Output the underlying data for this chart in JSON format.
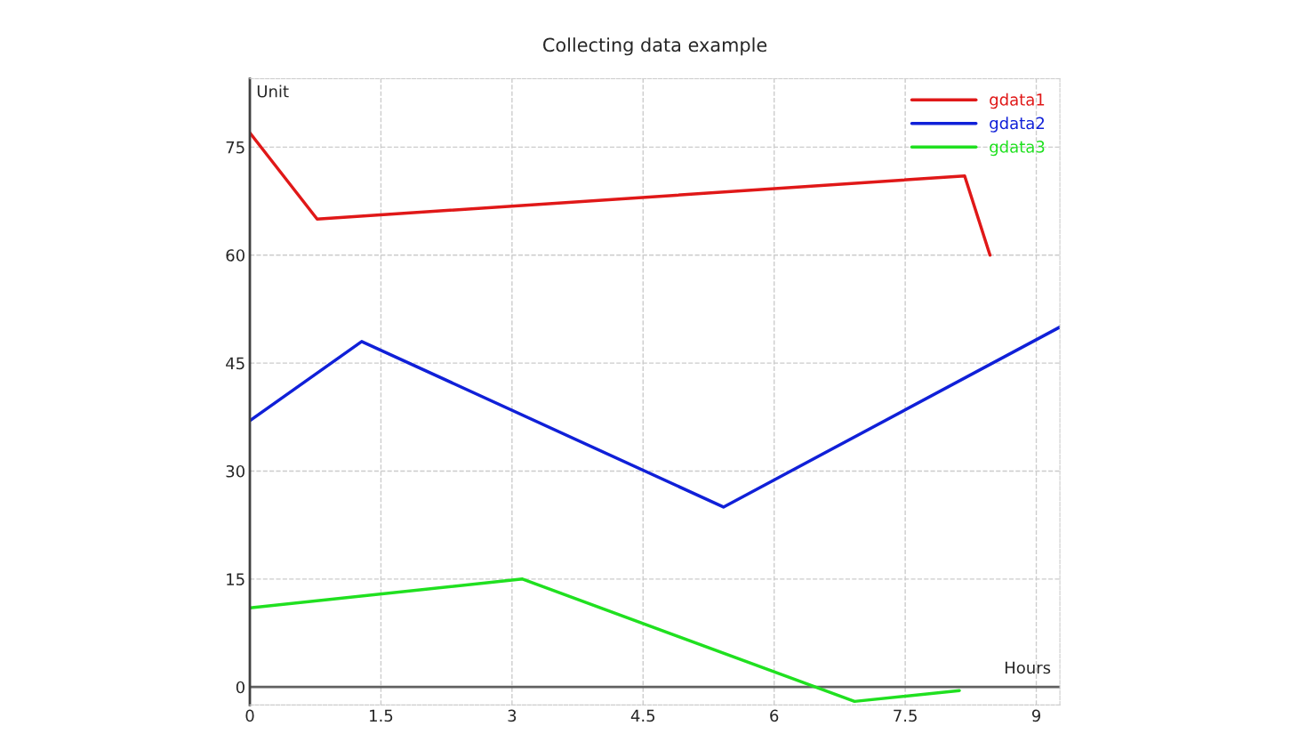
{
  "chart_data": {
    "type": "line",
    "title": "Collecting data example",
    "xlabel": "Hours",
    "ylabel": "Unit",
    "xlim": [
      0,
      9.27
    ],
    "ylim": [
      -2.5,
      84.5
    ],
    "xticks": [
      0,
      1.5,
      3,
      4.5,
      6,
      7.5,
      9
    ],
    "yticks": [
      0,
      15,
      30,
      45,
      60,
      75
    ],
    "grid": true,
    "legend": "top right",
    "line_style": "solid",
    "ref_lines": [
      {
        "axis": "y",
        "value": 0,
        "color": "#606060"
      }
    ],
    "series": [
      {
        "name": "gdata1",
        "color": "#e01818",
        "x": [
          0,
          0.77,
          8.18,
          8.47
        ],
        "values": [
          77,
          65,
          71,
          60
        ]
      },
      {
        "name": "gdata2",
        "color": "#1020d8",
        "x": [
          0,
          1.28,
          5.42,
          9.27
        ],
        "values": [
          37,
          48,
          25,
          50
        ]
      },
      {
        "name": "gdata3",
        "color": "#20e020",
        "x": [
          0,
          3.12,
          6.92,
          8.12
        ],
        "values": [
          11,
          15,
          -2,
          -0.5
        ]
      }
    ]
  }
}
